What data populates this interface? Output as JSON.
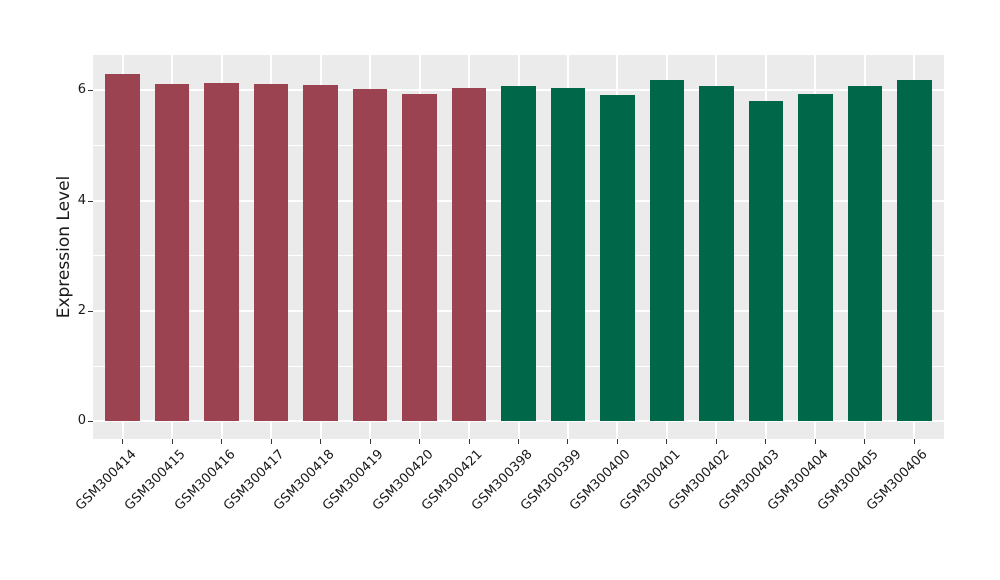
{
  "figure": {
    "background_color": "#FFFFFF",
    "panel_background_color": "#EBEBEB",
    "gridline_color": "#FFFFFF",
    "axis_text_color": "#1A1A1A",
    "tick_mark_color": "#333333"
  },
  "chart_data": {
    "type": "bar",
    "title": "",
    "xlabel": "",
    "ylabel": "Expression Level",
    "legend": "none",
    "grid": true,
    "orientation": "vertical",
    "x_tick_rotation_deg": 45,
    "ylim": [
      -0.32,
      6.64
    ],
    "yticks_major": [
      0,
      2,
      4,
      6
    ],
    "yticks_minor": [
      1,
      3,
      5
    ],
    "bar_width_fraction": 0.7,
    "categories": [
      "GSM300414",
      "GSM300415",
      "GSM300416",
      "GSM300417",
      "GSM300418",
      "GSM300419",
      "GSM300420",
      "GSM300421",
      "GSM300398",
      "GSM300399",
      "GSM300400",
      "GSM300401",
      "GSM300402",
      "GSM300403",
      "GSM300404",
      "GSM300405",
      "GSM300406"
    ],
    "series": [
      {
        "name": "maroon-group",
        "color": "#9C4351",
        "categories": [
          "GSM300414",
          "GSM300415",
          "GSM300416",
          "GSM300417",
          "GSM300418",
          "GSM300419",
          "GSM300420",
          "GSM300421"
        ],
        "values": [
          6.29,
          6.11,
          6.14,
          6.12,
          6.1,
          6.02,
          5.93,
          6.05
        ]
      },
      {
        "name": "green-group",
        "color": "#006849",
        "categories": [
          "GSM300398",
          "GSM300399",
          "GSM300400",
          "GSM300401",
          "GSM300402",
          "GSM300403",
          "GSM300404",
          "GSM300405",
          "GSM300406"
        ],
        "values": [
          6.07,
          6.04,
          5.92,
          6.19,
          6.07,
          5.8,
          5.94,
          6.07,
          6.18
        ]
      }
    ]
  }
}
